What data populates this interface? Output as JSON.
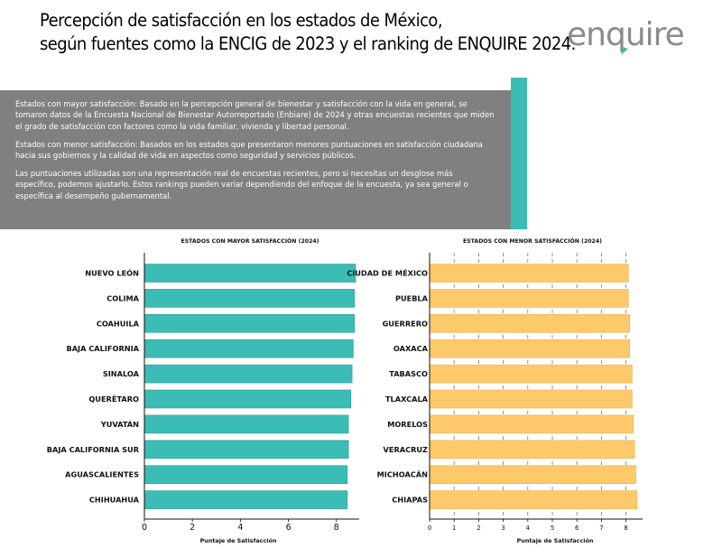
{
  "header": {
    "title_line1": "Percepción de satisfacción en los estados de México,",
    "title_line2": "según fuentes como la ENCIG de 2023 y el ranking de ENQUIRE 2024."
  },
  "logo": {
    "text": "enquire",
    "color": "#8b8b8b",
    "accent": "#3bbcb4"
  },
  "info": {
    "p1": "Estados con mayor satisfacción: Basado en la percepción general de bienestar y satisfacción con la vida en general, se tomaron datos de la Encuesta Nacional de Bienestar Autorreportado (Enbiare) de 2024 y otras encuestas recientes que miden el grado de satisfacción con factores como la vida familiar, vivienda y libertad personal.",
    "p2": "Estados con menor satisfacción: Basados en los estados que presentaron menores puntuaciones en satisfacción ciudadana hacia sus gobiernos y la calidad de vida en aspectos como seguridad y servicios públicos.",
    "p3": "Las puntuaciones utilizadas son una representación real de encuestas recientes, pero si necesitas un desglose más específico, podemos ajustarlo. Estos rankings pueden variar dependiendo del enfoque de la encuesta, ya sea general o específica al desempeño gubernamental."
  },
  "chart_data": [
    {
      "type": "bar",
      "orientation": "horizontal",
      "title": "ESTADOS CON MAYOR SATISFACCIÓN (2024)",
      "xlabel": "Puntaje de Satisfacción",
      "ylabel": "",
      "categories": [
        "NUEVO LEÓN",
        "COLIMA",
        "COAHUILA",
        "BAJA CALIFORNIA",
        "SINALOA",
        "QUERÉTARO",
        "YUVATÁN",
        "BAJA CALIFORNIA SUR",
        "AGUASCALIENTES",
        "CHIHUAHUA"
      ],
      "values": [
        8.8,
        8.75,
        8.75,
        8.7,
        8.65,
        8.6,
        8.5,
        8.5,
        8.45,
        8.45
      ],
      "xlim": [
        0,
        9
      ],
      "xticks": [
        0,
        2,
        4,
        6,
        8
      ],
      "grid": false,
      "bar_color": "#3bbcb4",
      "bar_stroke": "#2f9c96"
    },
    {
      "type": "bar",
      "orientation": "horizontal",
      "title": "ESTADOS CON MENOR SATISFACCIÓN (2024)",
      "xlabel": "Puntaje de Satisfacción",
      "ylabel": "",
      "categories": [
        "CIUDAD DE MÉXICO",
        "PUEBLA",
        "GUERRERO",
        "OAXACA",
        "TABASCO",
        "TLAXCALA",
        "MORELOS",
        "VERACRUZ",
        "MICHOACÁN",
        "CHIAPAS"
      ],
      "values": [
        8.1,
        8.1,
        8.15,
        8.15,
        8.25,
        8.25,
        8.3,
        8.35,
        8.4,
        8.45
      ],
      "xlim": [
        0,
        8.5
      ],
      "xticks": [
        0,
        1,
        2,
        3,
        4,
        5,
        6,
        7,
        8
      ],
      "grid": true,
      "bar_color": "#fec96a",
      "bar_stroke": "#e9b24f"
    }
  ]
}
